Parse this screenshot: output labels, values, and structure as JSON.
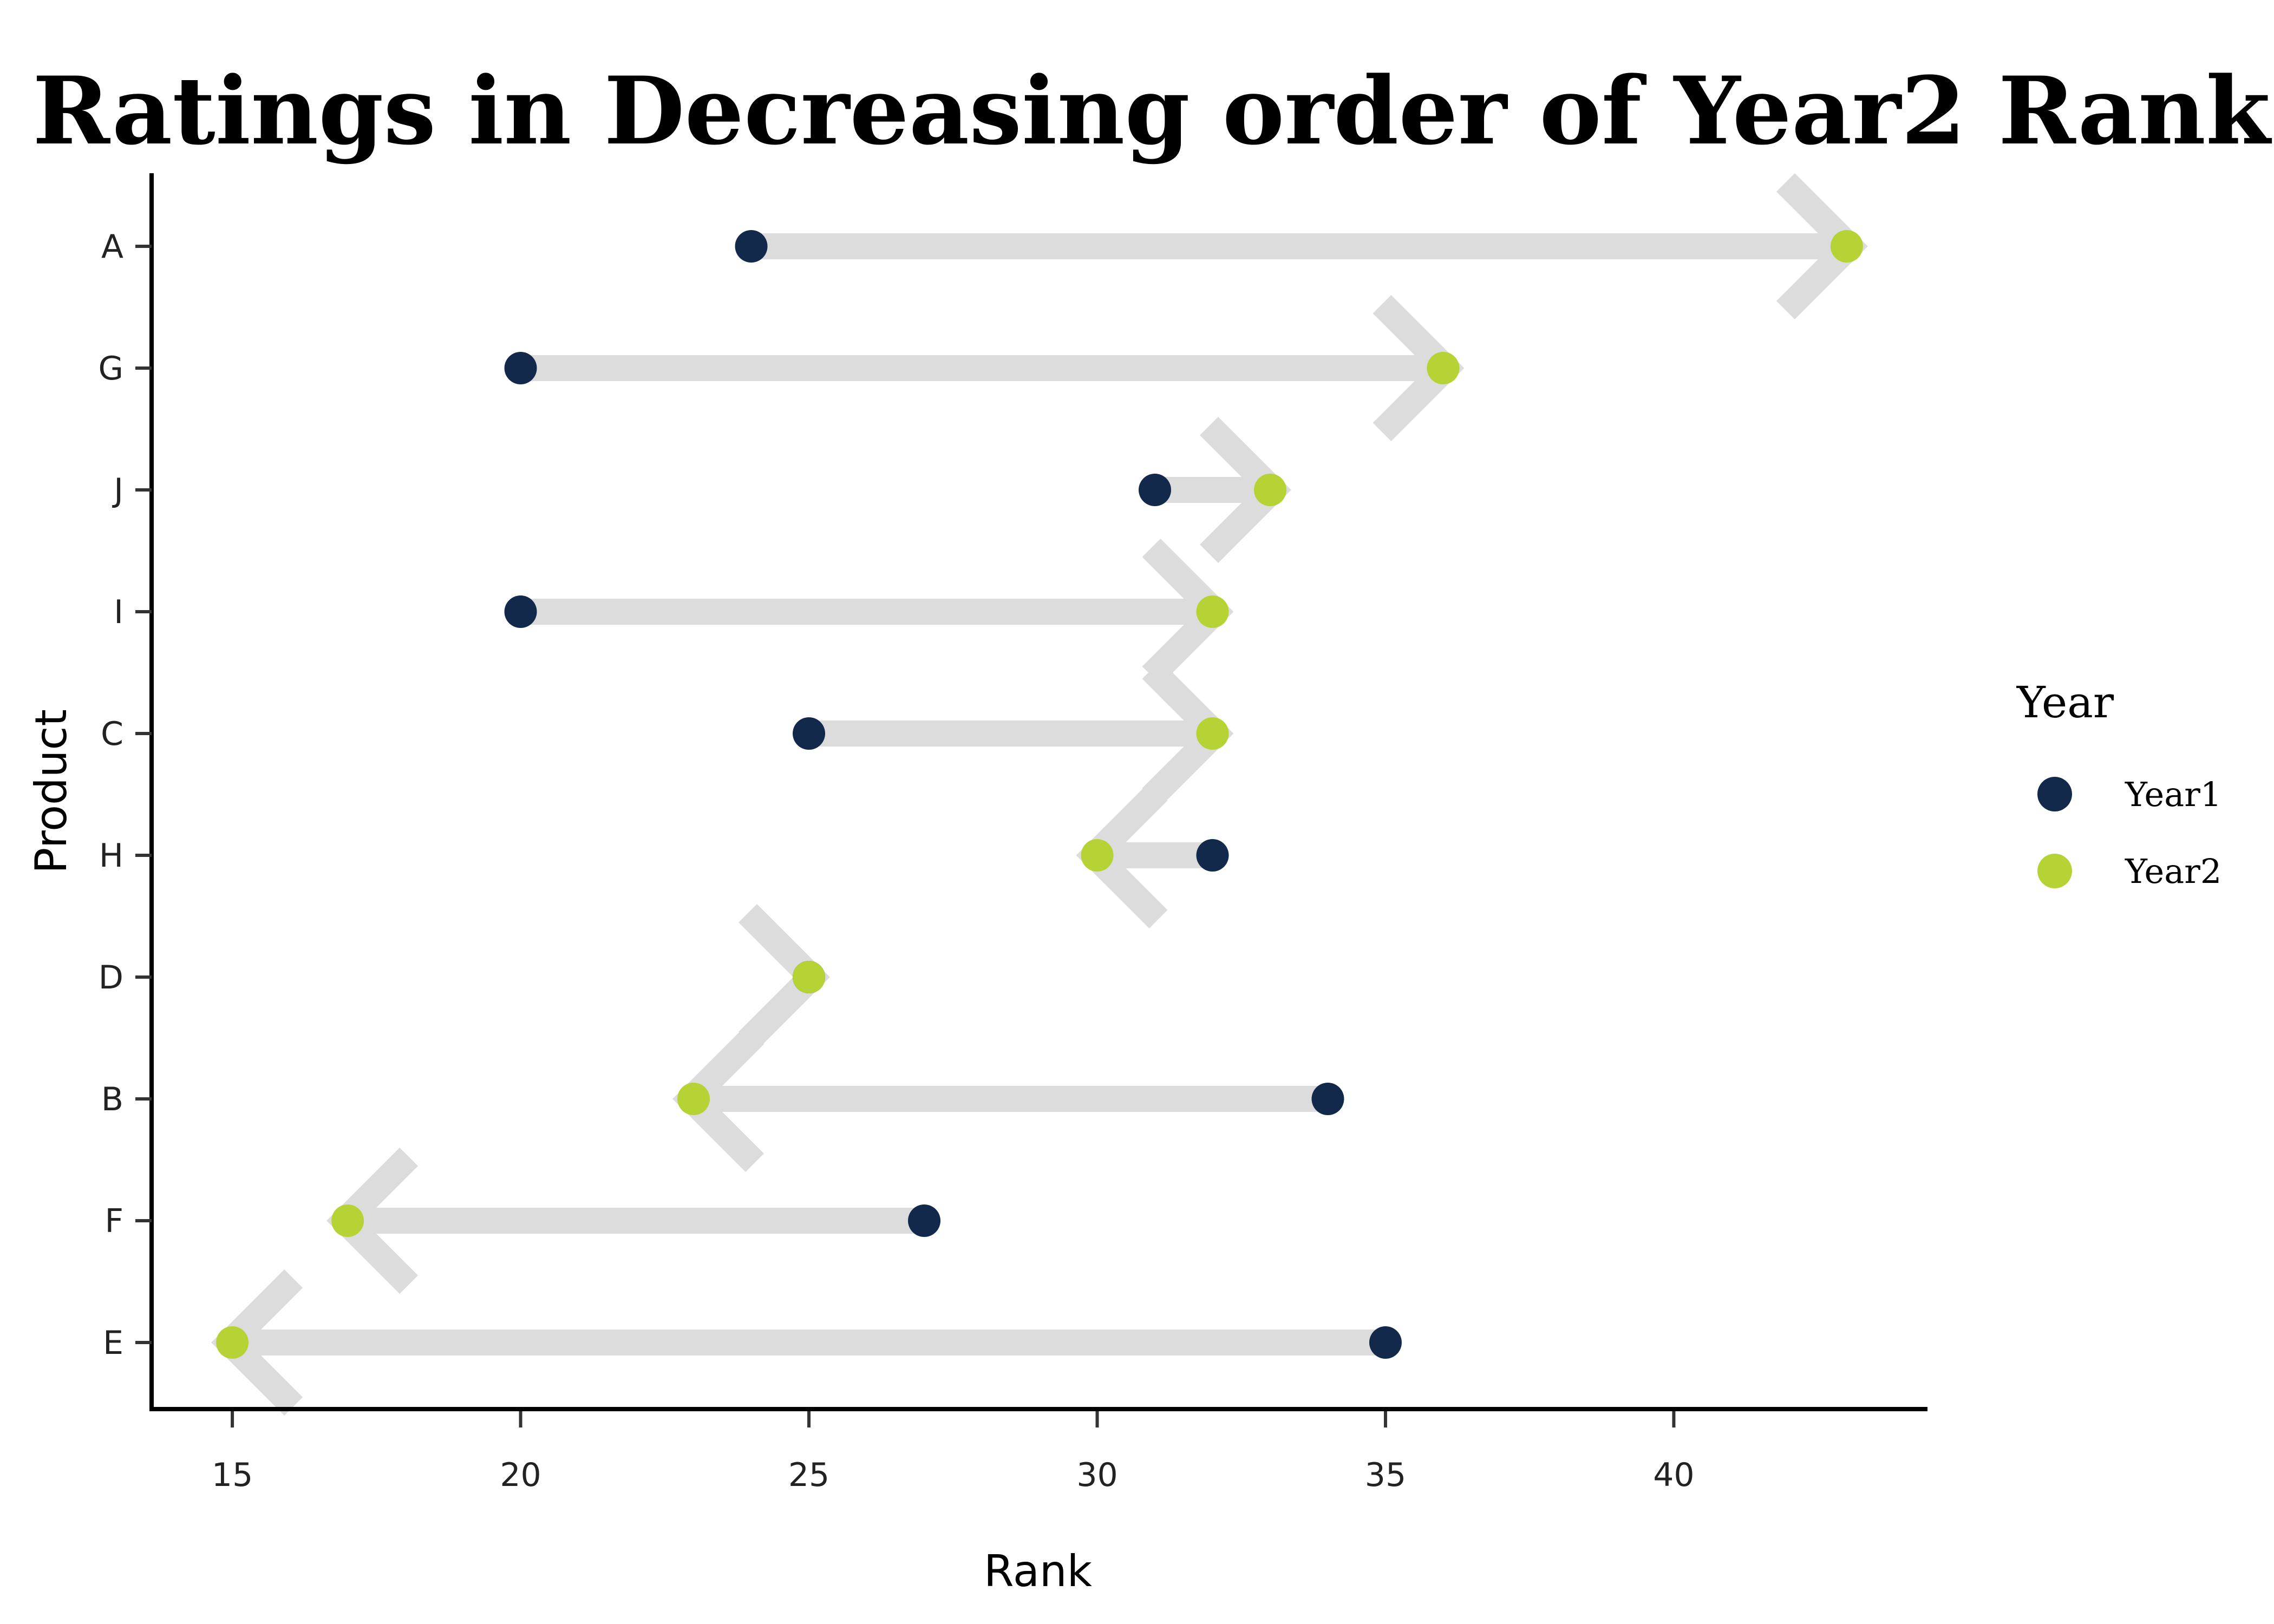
{
  "chart_data": {
    "type": "dumbbell-arrow",
    "title": "Ratings in Decreasing order of Year2 Rank",
    "xlabel": "Rank",
    "ylabel": "Product",
    "xlim": [
      13.6,
      44.4
    ],
    "xticks": [
      15,
      20,
      25,
      30,
      35,
      40
    ],
    "categories": [
      "A",
      "G",
      "J",
      "I",
      "C",
      "H",
      "D",
      "B",
      "F",
      "E"
    ],
    "series": [
      {
        "name": "Year1",
        "color": "#13294b",
        "values": [
          24,
          20,
          31,
          20,
          25,
          32,
          25,
          34,
          27,
          35
        ]
      },
      {
        "name": "Year2",
        "color": "#b5d334",
        "values": [
          43,
          36,
          33,
          32,
          32,
          30,
          25,
          23,
          17,
          15
        ]
      }
    ],
    "arrow_color": "#dcdcdc",
    "legend": {
      "title": "Year",
      "position": "right"
    },
    "grid": false
  }
}
